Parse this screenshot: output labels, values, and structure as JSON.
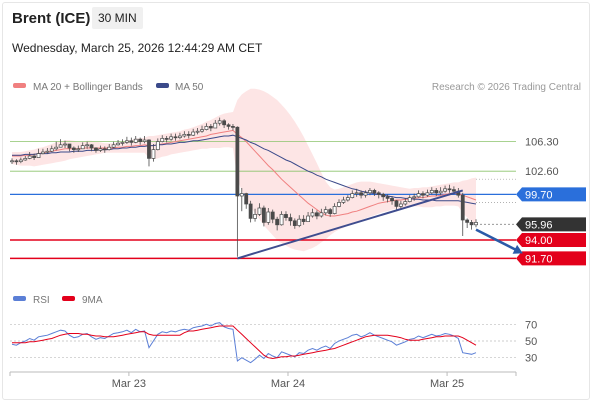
{
  "header": {
    "instrument": "Brent (ICE)",
    "timeframe": "30 MIN",
    "datetime": "Wednesday, March 25, 2026 12:44:29 AM CET"
  },
  "legend": {
    "ma20": "MA 20 + Bollinger Bands",
    "ma50": "MA 50",
    "credit": "Research © 2026 Trading Central",
    "rsi": "RSI",
    "rsi_ma": "9MA"
  },
  "colors": {
    "candle": "#4a4a4a",
    "ma20": "#f08080",
    "ma50": "#3b4a8a",
    "bollinger_fill": "#fde0e0",
    "resistance": "#8cc46c",
    "pivot": "#2a6fdb",
    "support": "#e3001b",
    "last_price": "#333333",
    "rsi": "#5b7fd6",
    "rsi_ma": "#e3001b",
    "trendline": "#3f4d8f",
    "arrow": "#2b5aa8"
  },
  "chart_data": [
    {
      "type": "candlestick",
      "title": "",
      "x_ticks": [
        "Mar 23",
        "Mar 24",
        "Mar 25"
      ],
      "levels": [
        {
          "name": "resistance",
          "value": 106.3,
          "label": "106.30"
        },
        {
          "name": "resistance",
          "value": 102.6,
          "label": "102.60"
        },
        {
          "name": "pivot",
          "value": 99.7,
          "label": "99.70"
        },
        {
          "name": "last",
          "value": 95.96,
          "label": "95.96"
        },
        {
          "name": "support",
          "value": 94.0,
          "label": "94.00"
        },
        {
          "name": "support",
          "value": 91.7,
          "label": "91.70"
        }
      ],
      "ylim": [
        88.0,
        112.0
      ],
      "close": [
        103.9,
        103.8,
        104.0,
        104.2,
        104.5,
        104.3,
        104.8,
        105.0,
        105.1,
        105.4,
        105.6,
        105.9,
        106.0,
        105.5,
        105.3,
        105.4,
        105.8,
        105.9,
        105.5,
        105.2,
        105.4,
        105.3,
        105.6,
        105.9,
        106.1,
        106.2,
        106.4,
        106.2,
        106.6,
        106.3,
        106.5,
        104.2,
        105.3,
        106.3,
        106.7,
        106.6,
        106.9,
        106.8,
        107.0,
        107.2,
        107.1,
        107.5,
        107.6,
        107.8,
        108.2,
        108.0,
        108.6,
        108.9,
        108.4,
        108.2,
        108.1,
        99.5,
        99.8,
        98.5,
        96.7,
        97.2,
        98.0,
        96.2,
        97.5,
        96.6,
        95.9,
        97.2,
        96.8,
        96.4,
        95.8,
        96.6,
        96.3,
        97.0,
        97.4,
        97.0,
        97.4,
        97.8,
        97.3,
        98.2,
        98.7,
        99.0,
        99.3,
        99.8,
        99.9,
        99.6,
        99.9,
        100.2,
        99.9,
        99.7,
        99.4,
        99.2,
        98.9,
        98.2,
        98.5,
        98.8,
        99.3,
        99.4,
        99.8,
        99.6,
        99.9,
        100.2,
        99.9,
        100.1,
        100.4,
        100.3,
        100.1,
        99.6,
        96.5,
        96.2,
        95.9,
        96.2
      ],
      "high": [
        104.2,
        104.1,
        104.3,
        104.5,
        105.0,
        104.8,
        105.4,
        105.4,
        105.5,
        105.8,
        106.3,
        106.6,
        106.4,
        106.0,
        105.7,
        105.8,
        106.2,
        106.3,
        106.0,
        105.6,
        105.8,
        105.7,
        106.0,
        106.3,
        106.5,
        106.6,
        106.9,
        106.8,
        107.0,
        106.8,
        107.0,
        106.6,
        106.0,
        106.7,
        107.1,
        107.0,
        107.3,
        107.3,
        107.4,
        107.6,
        107.6,
        107.9,
        108.0,
        108.3,
        108.6,
        108.5,
        109.0,
        109.3,
        109.1,
        108.6,
        108.5,
        108.2,
        100.5,
        99.9,
        98.9,
        97.9,
        98.6,
        98.3,
        98.0,
        97.8,
        96.9,
        97.6,
        97.6,
        97.3,
        96.7,
        97.1,
        97.1,
        97.5,
        97.9,
        97.7,
        97.9,
        98.2,
        98.0,
        98.6,
        99.1,
        99.4,
        99.6,
        100.2,
        100.4,
        100.2,
        100.2,
        100.5,
        100.4,
        100.1,
        99.9,
        99.7,
        99.5,
        99.0,
        98.9,
        99.2,
        99.6,
        99.8,
        100.2,
        100.1,
        100.3,
        100.6,
        100.5,
        100.6,
        100.8,
        100.9,
        100.7,
        100.5,
        99.9,
        96.7,
        96.5,
        96.6
      ],
      "low": [
        103.5,
        103.4,
        103.6,
        103.9,
        104.1,
        104.0,
        104.3,
        104.7,
        104.8,
        105.0,
        105.2,
        105.6,
        105.5,
        105.1,
        104.9,
        105.0,
        105.4,
        105.4,
        105.1,
        104.9,
        105.0,
        104.9,
        105.2,
        105.5,
        105.8,
        105.8,
        106.0,
        105.8,
        106.1,
        105.9,
        106.1,
        103.2,
        103.8,
        105.2,
        106.2,
        106.2,
        106.4,
        106.4,
        106.6,
        106.8,
        106.7,
        107.0,
        107.2,
        107.4,
        107.7,
        107.6,
        108.0,
        108.3,
        108.0,
        107.8,
        107.7,
        91.9,
        97.6,
        97.9,
        96.2,
        96.3,
        97.0,
        95.7,
        95.9,
        96.1,
        95.2,
        95.8,
        96.4,
        95.8,
        95.4,
        95.6,
        95.9,
        96.3,
        96.8,
        96.6,
        96.8,
        97.1,
        96.9,
        97.2,
        98.1,
        98.5,
        98.8,
        99.2,
        99.4,
        99.2,
        99.3,
        99.6,
        99.5,
        99.2,
        98.9,
        98.7,
        98.4,
        97.8,
        97.9,
        98.3,
        98.7,
        98.9,
        99.3,
        99.2,
        99.4,
        99.7,
        99.5,
        99.6,
        99.9,
        99.9,
        99.7,
        99.3,
        94.5,
        95.5,
        95.3,
        95.6
      ],
      "ma20": [
        104.5,
        104.5,
        104.5,
        104.6,
        104.6,
        104.7,
        104.8,
        104.9,
        105.0,
        105.1,
        105.2,
        105.3,
        105.4,
        105.4,
        105.4,
        105.4,
        105.5,
        105.5,
        105.5,
        105.5,
        105.5,
        105.5,
        105.5,
        105.5,
        105.6,
        105.6,
        105.7,
        105.7,
        105.8,
        105.8,
        105.9,
        105.8,
        105.8,
        105.9,
        106.0,
        106.1,
        106.2,
        106.3,
        106.4,
        106.5,
        106.6,
        106.7,
        106.8,
        106.9,
        107.0,
        107.2,
        107.3,
        107.4,
        107.5,
        107.6,
        107.7,
        107.2,
        106.8,
        106.3,
        105.7,
        105.1,
        104.5,
        103.9,
        103.3,
        102.8,
        102.2,
        101.6,
        101.1,
        100.6,
        100.1,
        99.6,
        99.1,
        98.6,
        98.2,
        97.8,
        97.4,
        97.1,
        97.0,
        97.0,
        97.1,
        97.2,
        97.3,
        97.5,
        97.6,
        97.8,
        98.0,
        98.2,
        98.4,
        98.6,
        98.7,
        98.8,
        98.9,
        99.0,
        99.0,
        99.1,
        99.1,
        99.2,
        99.3,
        99.3,
        99.4,
        99.5,
        99.5,
        99.6,
        99.7,
        99.8,
        99.8,
        99.8,
        99.6,
        99.4,
        99.2,
        99.0
      ],
      "bb_upper": [
        105.0,
        105.0,
        105.0,
        105.1,
        105.2,
        105.3,
        105.5,
        105.6,
        105.8,
        106.0,
        106.2,
        106.3,
        106.5,
        106.5,
        106.4,
        106.3,
        106.3,
        106.4,
        106.4,
        106.3,
        106.2,
        106.1,
        106.1,
        106.1,
        106.2,
        106.3,
        106.5,
        106.5,
        106.7,
        106.7,
        106.8,
        107.0,
        107.0,
        107.1,
        107.2,
        107.3,
        107.4,
        107.5,
        107.6,
        107.8,
        107.9,
        108.1,
        108.3,
        108.5,
        108.8,
        109.0,
        109.3,
        109.6,
        109.8,
        109.9,
        110.0,
        111.5,
        112.2,
        112.6,
        112.9,
        112.9,
        112.8,
        112.6,
        112.3,
        111.9,
        111.5,
        110.9,
        110.3,
        109.6,
        108.8,
        107.9,
        106.9,
        105.8,
        104.7,
        103.6,
        102.4,
        101.3,
        100.6,
        100.3,
        100.4,
        100.6,
        100.8,
        101.0,
        101.2,
        101.3,
        101.3,
        101.3,
        101.2,
        101.1,
        101.0,
        100.9,
        100.8,
        100.7,
        100.6,
        100.5,
        100.4,
        100.5,
        100.5,
        100.6,
        100.6,
        100.7,
        100.8,
        100.9,
        101.0,
        101.1,
        101.2,
        101.2,
        101.4,
        101.5,
        101.7,
        101.8
      ],
      "bb_lower": [
        103.5,
        103.4,
        103.3,
        103.3,
        103.3,
        103.2,
        103.3,
        103.4,
        103.5,
        103.6,
        103.7,
        103.8,
        103.9,
        104.1,
        104.2,
        104.3,
        104.4,
        104.5,
        104.6,
        104.7,
        104.8,
        104.9,
        104.9,
        104.9,
        104.9,
        104.9,
        104.9,
        104.9,
        104.9,
        104.9,
        104.9,
        104.2,
        104.1,
        104.2,
        104.4,
        104.5,
        104.7,
        104.8,
        104.9,
        105.0,
        105.1,
        105.2,
        105.3,
        105.4,
        105.4,
        105.5,
        105.5,
        105.5,
        105.6,
        105.6,
        105.5,
        101.5,
        100.2,
        99.2,
        98.2,
        97.3,
        96.6,
        95.8,
        95.2,
        94.6,
        94.0,
        93.6,
        93.3,
        93.0,
        92.8,
        92.7,
        92.6,
        92.8,
        93.0,
        93.3,
        93.7,
        94.1,
        94.6,
        95.0,
        95.3,
        95.5,
        95.8,
        96.0,
        96.2,
        96.5,
        96.7,
        96.9,
        97.1,
        97.3,
        97.5,
        97.6,
        97.8,
        97.9,
        98.0,
        98.1,
        98.2,
        98.2,
        98.2,
        98.1,
        98.1,
        98.1,
        98.2,
        98.2,
        98.3,
        98.3,
        98.3,
        98.2,
        97.4,
        96.8,
        96.3,
        95.8
      ],
      "ma50": [
        104.6,
        104.6,
        104.6,
        104.7,
        104.7,
        104.7,
        104.8,
        104.8,
        104.8,
        104.9,
        104.9,
        105.0,
        105.0,
        105.0,
        105.1,
        105.1,
        105.1,
        105.2,
        105.2,
        105.2,
        105.3,
        105.3,
        105.3,
        105.4,
        105.4,
        105.5,
        105.5,
        105.6,
        105.6,
        105.7,
        105.7,
        105.8,
        105.8,
        105.9,
        105.9,
        106.0,
        106.0,
        106.1,
        106.2,
        106.2,
        106.3,
        106.4,
        106.4,
        106.5,
        106.6,
        106.7,
        106.8,
        106.9,
        107.0,
        107.0,
        107.1,
        106.9,
        106.7,
        106.5,
        106.2,
        106.0,
        105.7,
        105.4,
        105.2,
        104.9,
        104.6,
        104.3,
        104.0,
        103.8,
        103.5,
        103.2,
        102.9,
        102.6,
        102.4,
        102.1,
        101.9,
        101.6,
        101.4,
        101.2,
        101.0,
        100.8,
        100.6,
        100.4,
        100.3,
        100.1,
        100.0,
        99.9,
        99.8,
        99.7,
        99.6,
        99.5,
        99.4,
        99.3,
        99.3,
        99.2,
        99.2,
        99.1,
        99.1,
        99.0,
        99.0,
        99.0,
        98.9,
        98.9,
        98.9,
        98.9,
        98.9,
        98.9,
        98.8,
        98.7,
        98.6,
        98.5
      ],
      "trendline": [
        {
          "bar": 51,
          "value": 91.7
        },
        {
          "bar": 102,
          "value": 100.2
        }
      ],
      "forecast_arrow": [
        {
          "bar": 105,
          "value": 95.3
        },
        {
          "bar": 115,
          "value": 92.5
        }
      ]
    },
    {
      "type": "line",
      "title": "RSI",
      "series": [
        {
          "name": "RSI",
          "values": [
            46,
            45,
            48,
            50,
            53,
            51,
            55,
            56,
            57,
            59,
            61,
            63,
            62,
            57,
            54,
            55,
            58,
            59,
            55,
            52,
            54,
            53,
            56,
            59,
            60,
            61,
            63,
            60,
            64,
            61,
            62,
            42,
            50,
            58,
            61,
            60,
            62,
            61,
            63,
            64,
            63,
            66,
            67,
            68,
            70,
            68,
            71,
            72,
            67,
            65,
            64,
            26,
            30,
            27,
            24,
            28,
            33,
            29,
            35,
            32,
            30,
            37,
            35,
            33,
            31,
            36,
            35,
            39,
            41,
            39,
            42,
            44,
            41,
            47,
            50,
            52,
            54,
            57,
            58,
            55,
            57,
            60,
            57,
            55,
            53,
            51,
            49,
            45,
            47,
            49,
            52,
            53,
            56,
            54,
            56,
            58,
            56,
            57,
            59,
            58,
            56,
            53,
            36,
            35,
            34,
            36
          ]
        },
        {
          "name": "9MA",
          "values": [
            48,
            48,
            48,
            48,
            49,
            49,
            50,
            51,
            52,
            53,
            55,
            57,
            58,
            59,
            59,
            59,
            58,
            58,
            57,
            56,
            56,
            55,
            55,
            55,
            56,
            57,
            58,
            59,
            60,
            61,
            61,
            58,
            57,
            57,
            57,
            57,
            57,
            57,
            57,
            60,
            62,
            62,
            63,
            64,
            65,
            66,
            67,
            68,
            68,
            68,
            68,
            63,
            58,
            53,
            48,
            43,
            38,
            33,
            30,
            29,
            30,
            31,
            31,
            32,
            32,
            33,
            34,
            35,
            36,
            37,
            38,
            39,
            40,
            41,
            43,
            45,
            47,
            49,
            51,
            53,
            55,
            56,
            57,
            57,
            57,
            57,
            56,
            55,
            54,
            52,
            51,
            51,
            51,
            52,
            53,
            54,
            55,
            55,
            56,
            56,
            56,
            56,
            54,
            51,
            48,
            45
          ]
        }
      ],
      "y_ticks": [
        70,
        50,
        30
      ],
      "ylim": [
        20,
        80
      ]
    }
  ]
}
